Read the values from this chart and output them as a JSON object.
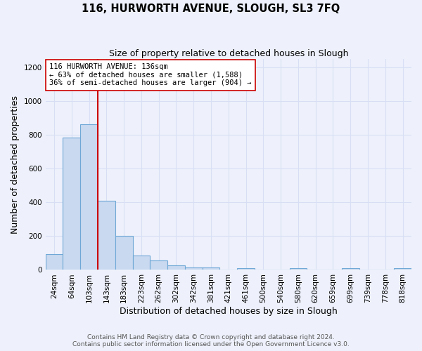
{
  "title": "116, HURWORTH AVENUE, SLOUGH, SL3 7FQ",
  "subtitle": "Size of property relative to detached houses in Slough",
  "xlabel": "Distribution of detached houses by size in Slough",
  "ylabel": "Number of detached properties",
  "bar_labels": [
    "24sqm",
    "64sqm",
    "103sqm",
    "143sqm",
    "183sqm",
    "223sqm",
    "262sqm",
    "302sqm",
    "342sqm",
    "381sqm",
    "421sqm",
    "461sqm",
    "500sqm",
    "540sqm",
    "580sqm",
    "620sqm",
    "659sqm",
    "699sqm",
    "739sqm",
    "778sqm",
    "818sqm"
  ],
  "bar_values": [
    95,
    785,
    865,
    410,
    200,
    85,
    55,
    25,
    15,
    15,
    0,
    10,
    0,
    0,
    10,
    0,
    0,
    10,
    0,
    0,
    10
  ],
  "bar_color": "#c9d9f0",
  "bar_edge_color": "#6fa8d6",
  "property_label": "116 HURWORTH AVENUE: 136sqm",
  "annotation_line1": "← 63% of detached houses are smaller (1,588)",
  "annotation_line2": "36% of semi-detached houses are larger (904) →",
  "vline_color": "#cc0000",
  "vline_bin_index": 3,
  "annotation_box_color": "#ffffff",
  "annotation_box_edge": "#cc0000",
  "footer_line1": "Contains HM Land Registry data © Crown copyright and database right 2024.",
  "footer_line2": "Contains public sector information licensed under the Open Government Licence v3.0.",
  "ylim": [
    0,
    1250
  ],
  "yticks": [
    0,
    200,
    400,
    600,
    800,
    1000,
    1200
  ],
  "background_color": "#eef1fb",
  "grid_color": "#d8dff5",
  "title_fontsize": 10.5,
  "subtitle_fontsize": 9,
  "axis_label_fontsize": 9,
  "tick_fontsize": 7.5,
  "annotation_fontsize": 7.5,
  "footer_fontsize": 6.5
}
